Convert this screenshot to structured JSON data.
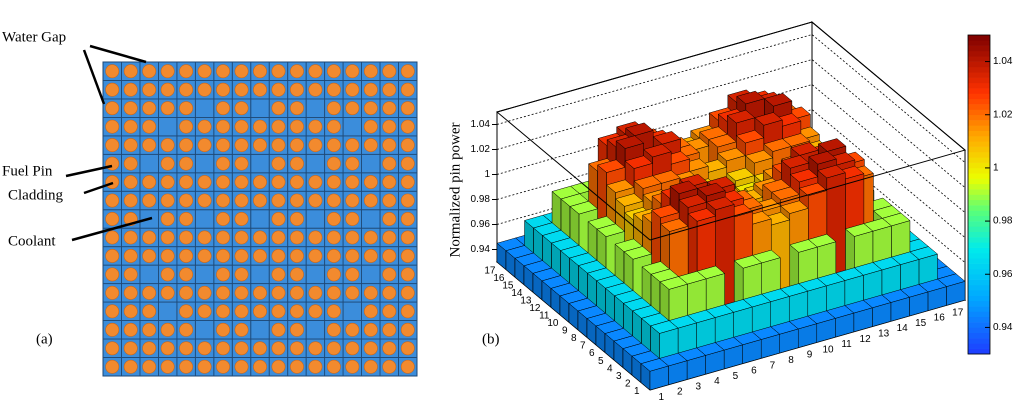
{
  "diagram": {
    "labels": [
      "Water Gap",
      "Fuel Pin",
      "Cladding",
      "Coolant"
    ],
    "caption": "(a)"
  },
  "chart_data": {
    "type": "lego",
    "caption": "(b)",
    "zlabel": "Normalized pin power",
    "x": [
      1,
      2,
      3,
      4,
      5,
      6,
      7,
      8,
      9,
      10,
      11,
      12,
      13,
      14,
      15,
      16,
      17
    ],
    "y": [
      1,
      2,
      3,
      4,
      5,
      6,
      7,
      8,
      9,
      10,
      11,
      12,
      13,
      14,
      15,
      16,
      17
    ],
    "zlim": [
      0.93,
      1.05
    ],
    "zticks": [
      0.94,
      0.96,
      0.98,
      1,
      1.02,
      1.04
    ],
    "colorbar": true,
    "grid": true,
    "values": [
      [
        0.945,
        0.945,
        0.945,
        0.945,
        0.945,
        0.945,
        0.945,
        0.945,
        0.945,
        0.945,
        0.945,
        0.945,
        0.945,
        0.945,
        0.945,
        0.945,
        0.945
      ],
      [
        0.945,
        0.965,
        0.965,
        0.965,
        0.965,
        0.965,
        0.965,
        0.965,
        0.965,
        0.965,
        0.965,
        0.965,
        0.965,
        0.965,
        0.965,
        0.965,
        0.945
      ],
      [
        0.945,
        0.965,
        0.99,
        0.99,
        0.99,
        null,
        0.99,
        0.99,
        null,
        0.99,
        0.99,
        null,
        0.99,
        0.99,
        0.99,
        0.965,
        0.945
      ],
      [
        0.945,
        0.965,
        0.99,
        null,
        1.03,
        1.035,
        1.025,
        1.015,
        1.01,
        1.015,
        1.025,
        1.035,
        1.03,
        null,
        0.99,
        0.965,
        0.945
      ],
      [
        0.945,
        0.965,
        0.99,
        1.02,
        1.035,
        1.04,
        1.03,
        1.02,
        1.015,
        1.02,
        1.03,
        1.04,
        1.035,
        1.02,
        0.99,
        0.965,
        0.945
      ],
      [
        0.945,
        0.965,
        null,
        1.025,
        1.04,
        null,
        1.035,
        1.02,
        null,
        1.02,
        1.035,
        null,
        1.04,
        1.025,
        null,
        0.965,
        0.945
      ],
      [
        0.945,
        0.965,
        0.99,
        1.015,
        1.03,
        1.035,
        1.025,
        1.015,
        1.01,
        1.015,
        1.025,
        1.035,
        1.03,
        1.015,
        0.99,
        0.965,
        0.945
      ],
      [
        0.945,
        0.965,
        0.99,
        1.01,
        1.02,
        1.02,
        1.015,
        1.005,
        1.0,
        1.005,
        1.015,
        1.02,
        1.02,
        1.01,
        0.99,
        0.965,
        0.945
      ],
      [
        0.945,
        0.965,
        null,
        1.005,
        1.015,
        null,
        1.005,
        1.0,
        null,
        1.0,
        1.005,
        null,
        1.015,
        1.005,
        null,
        0.965,
        0.945
      ],
      [
        0.945,
        0.965,
        0.99,
        1.01,
        1.02,
        1.02,
        1.015,
        1.005,
        1.0,
        1.005,
        1.015,
        1.02,
        1.02,
        1.01,
        0.99,
        0.965,
        0.945
      ],
      [
        0.945,
        0.965,
        0.99,
        1.015,
        1.03,
        1.035,
        1.025,
        1.015,
        1.01,
        1.015,
        1.025,
        1.035,
        1.03,
        1.015,
        0.99,
        0.965,
        0.945
      ],
      [
        0.945,
        0.965,
        null,
        1.025,
        1.04,
        null,
        1.035,
        1.02,
        null,
        1.02,
        1.035,
        null,
        1.04,
        1.025,
        null,
        0.965,
        0.945
      ],
      [
        0.945,
        0.965,
        0.99,
        1.02,
        1.035,
        1.04,
        1.03,
        1.02,
        1.015,
        1.02,
        1.03,
        1.04,
        1.035,
        1.02,
        0.99,
        0.965,
        0.945
      ],
      [
        0.945,
        0.965,
        0.99,
        null,
        1.03,
        1.035,
        1.025,
        1.015,
        1.01,
        1.015,
        1.025,
        1.035,
        1.03,
        null,
        0.99,
        0.965,
        0.945
      ],
      [
        0.945,
        0.965,
        0.99,
        0.99,
        0.99,
        null,
        0.99,
        0.99,
        null,
        0.99,
        0.99,
        null,
        0.99,
        0.99,
        0.99,
        0.965,
        0.945
      ],
      [
        0.945,
        0.965,
        0.965,
        0.965,
        0.965,
        0.965,
        0.965,
        0.965,
        0.965,
        0.965,
        0.965,
        0.965,
        0.965,
        0.965,
        0.965,
        0.965,
        0.945
      ],
      [
        0.945,
        0.945,
        0.945,
        0.945,
        0.945,
        0.945,
        0.945,
        0.945,
        0.945,
        0.945,
        0.945,
        0.945,
        0.945,
        0.945,
        0.945,
        0.945,
        0.945
      ]
    ]
  }
}
